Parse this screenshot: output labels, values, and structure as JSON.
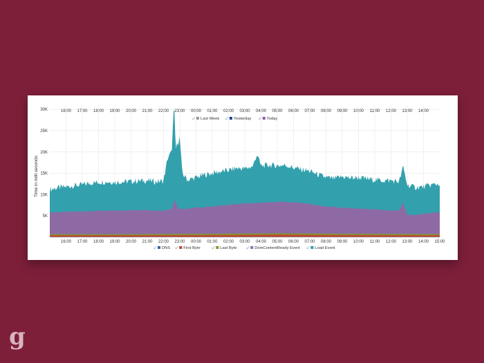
{
  "brand": {
    "logo_text": "g"
  },
  "chart_data": {
    "type": "area",
    "ylabel": "Time in milli seconds",
    "ylim": [
      0,
      31000
    ],
    "y_ticks": [
      {
        "v": 5000,
        "label": "5K"
      },
      {
        "v": 10000,
        "label": "10K"
      },
      {
        "v": 15000,
        "label": "15K"
      },
      {
        "v": 20000,
        "label": "20K"
      },
      {
        "v": 25000,
        "label": "25K"
      },
      {
        "v": 30000,
        "label": "30K"
      }
    ],
    "x_start_hour": 15.0,
    "x_end_hour": 39.0,
    "x_ticks": [
      {
        "v": 16,
        "label": "16:00"
      },
      {
        "v": 17,
        "label": "17:00"
      },
      {
        "v": 18,
        "label": "18:00"
      },
      {
        "v": 19,
        "label": "19:00"
      },
      {
        "v": 20,
        "label": "20:00"
      },
      {
        "v": 21,
        "label": "21:00"
      },
      {
        "v": 22,
        "label": "22:00"
      },
      {
        "v": 23,
        "label": "23:00"
      },
      {
        "v": 24,
        "label": "00:00"
      },
      {
        "v": 25,
        "label": "01:00"
      },
      {
        "v": 26,
        "label": "02:00"
      },
      {
        "v": 27,
        "label": "03:00"
      },
      {
        "v": 28,
        "label": "04:00"
      },
      {
        "v": 29,
        "label": "05:00"
      },
      {
        "v": 30,
        "label": "06:00"
      },
      {
        "v": 31,
        "label": "07:00"
      },
      {
        "v": 32,
        "label": "08:00"
      },
      {
        "v": 33,
        "label": "09:00"
      },
      {
        "v": 34,
        "label": "10:00"
      },
      {
        "v": 35,
        "label": "11:00"
      },
      {
        "v": 36,
        "label": "12:00"
      },
      {
        "v": 37,
        "label": "13:00"
      },
      {
        "v": 38,
        "label": "14:00"
      },
      {
        "v": 39,
        "label": "15:00"
      }
    ],
    "top_legend": [
      {
        "name": "Last Week",
        "color": "#9a9a9a"
      },
      {
        "name": "Yesterday",
        "color": "#1f3f8f"
      },
      {
        "name": "Today",
        "color": "#8b5fa6"
      }
    ],
    "bottom_legend": [
      {
        "name": "DNS",
        "color": "#3b5fa8"
      },
      {
        "name": "First Byte",
        "color": "#c0472f"
      },
      {
        "name": "Last Byte",
        "color": "#7d9a2f"
      },
      {
        "name": "DomContentReady Event",
        "color": "#8f6fae"
      },
      {
        "name": "Load Event",
        "color": "#2f9aa8"
      }
    ],
    "series": [
      {
        "name": "Load Event",
        "color": "#33a0ad",
        "points": [
          [
            15.0,
            11200
          ],
          [
            15.5,
            11600
          ],
          [
            16.0,
            11800
          ],
          [
            16.5,
            12100
          ],
          [
            17.0,
            12300
          ],
          [
            17.5,
            12700
          ],
          [
            18.0,
            12900
          ],
          [
            18.5,
            13000
          ],
          [
            19.0,
            12900
          ],
          [
            19.5,
            13000
          ],
          [
            20.0,
            13100
          ],
          [
            20.5,
            13200
          ],
          [
            21.0,
            13300
          ],
          [
            21.5,
            13000
          ],
          [
            22.0,
            13200
          ],
          [
            22.25,
            18500
          ],
          [
            22.5,
            20000
          ],
          [
            22.65,
            31500
          ],
          [
            22.75,
            20500
          ],
          [
            22.9,
            22500
          ],
          [
            23.0,
            23500
          ],
          [
            23.15,
            15000
          ],
          [
            23.5,
            13400
          ],
          [
            24.0,
            14000
          ],
          [
            24.5,
            14600
          ],
          [
            25.0,
            15000
          ],
          [
            25.5,
            15400
          ],
          [
            26.0,
            15700
          ],
          [
            26.5,
            16200
          ],
          [
            27.0,
            16100
          ],
          [
            27.5,
            16600
          ],
          [
            27.75,
            19500
          ],
          [
            28.0,
            16700
          ],
          [
            28.5,
            16900
          ],
          [
            29.0,
            16800
          ],
          [
            29.5,
            16900
          ],
          [
            30.0,
            16300
          ],
          [
            30.5,
            15900
          ],
          [
            31.0,
            15500
          ],
          [
            31.5,
            14700
          ],
          [
            32.0,
            14000
          ],
          [
            32.5,
            13700
          ],
          [
            33.0,
            14200
          ],
          [
            33.5,
            13900
          ],
          [
            34.0,
            14000
          ],
          [
            34.5,
            13700
          ],
          [
            35.0,
            13500
          ],
          [
            35.5,
            13300
          ],
          [
            36.0,
            13300
          ],
          [
            36.5,
            13000
          ],
          [
            36.75,
            16500
          ],
          [
            37.0,
            12200
          ],
          [
            37.5,
            11700
          ],
          [
            38.0,
            11800
          ],
          [
            38.5,
            12300
          ],
          [
            39.0,
            12500
          ]
        ]
      },
      {
        "name": "DomContentReady Event",
        "color": "#8e6aa4",
        "points": [
          [
            15.0,
            5800
          ],
          [
            16.0,
            6000
          ],
          [
            17.0,
            6000
          ],
          [
            18.0,
            6200
          ],
          [
            19.0,
            6200
          ],
          [
            20.0,
            6300
          ],
          [
            21.0,
            6300
          ],
          [
            22.0,
            6200
          ],
          [
            22.5,
            6600
          ],
          [
            22.7,
            8800
          ],
          [
            22.9,
            6600
          ],
          [
            23.5,
            6700
          ],
          [
            24.0,
            6900
          ],
          [
            25.0,
            7200
          ],
          [
            26.0,
            7600
          ],
          [
            27.0,
            7900
          ],
          [
            28.0,
            8100
          ],
          [
            29.0,
            8300
          ],
          [
            30.0,
            8200
          ],
          [
            31.0,
            7800
          ],
          [
            32.0,
            7200
          ],
          [
            33.0,
            6900
          ],
          [
            34.0,
            6700
          ],
          [
            35.0,
            6500
          ],
          [
            36.0,
            6200
          ],
          [
            36.5,
            6300
          ],
          [
            36.75,
            8000
          ],
          [
            37.0,
            5300
          ],
          [
            37.5,
            5200
          ],
          [
            38.0,
            5500
          ],
          [
            38.5,
            5700
          ],
          [
            39.0,
            5800
          ]
        ]
      },
      {
        "name": "Last Byte",
        "color": "#7d9a2f",
        "points": [
          [
            15.0,
            700
          ],
          [
            20.0,
            700
          ],
          [
            25.0,
            800
          ],
          [
            29.0,
            900
          ],
          [
            33.0,
            800
          ],
          [
            39.0,
            700
          ]
        ]
      },
      {
        "name": "First Byte",
        "color": "#c0472f",
        "points": [
          [
            15.0,
            450
          ],
          [
            20.0,
            450
          ],
          [
            25.0,
            500
          ],
          [
            29.0,
            600
          ],
          [
            33.0,
            500
          ],
          [
            39.0,
            450
          ]
        ]
      },
      {
        "name": "DNS",
        "color": "#3b5fa8",
        "points": [
          [
            15.0,
            60
          ],
          [
            39.0,
            60
          ]
        ]
      }
    ]
  }
}
